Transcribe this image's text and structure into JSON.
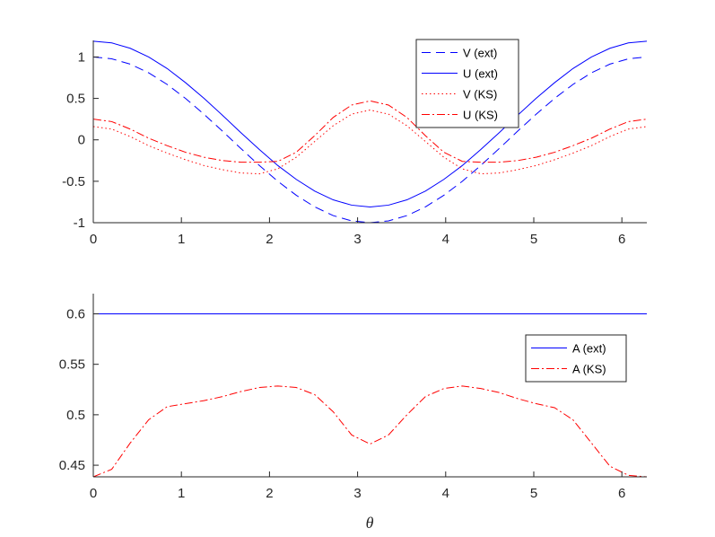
{
  "chart_data": [
    {
      "type": "line",
      "xlim": [
        0,
        6.2832
      ],
      "ylim": [
        -1,
        1.2
      ],
      "xticks": [
        0,
        1,
        2,
        3,
        4,
        5,
        6
      ],
      "xtick_labels": [
        "0",
        "1",
        "2",
        "3",
        "4",
        "5",
        "6"
      ],
      "yticks": [
        -1,
        -0.5,
        0,
        0.5,
        1
      ],
      "ytick_labels": [
        "-1",
        "-0.5",
        "0",
        "0.5",
        "1"
      ],
      "grid": false,
      "legend_position": "top-right",
      "x": [
        0,
        0.2094,
        0.4189,
        0.6283,
        0.8378,
        1.0472,
        1.2566,
        1.4661,
        1.6755,
        1.885,
        2.0944,
        2.3038,
        2.5133,
        2.7227,
        2.9322,
        3.1416,
        3.351,
        3.5605,
        3.7699,
        3.9794,
        4.1888,
        4.3982,
        4.6077,
        4.8171,
        5.0265,
        5.236,
        5.4454,
        5.6549,
        5.8643,
        6.0737,
        6.2832
      ],
      "series": [
        {
          "name": "V (ext)",
          "color": "#0000ff",
          "style": "dashed",
          "values": [
            1.0,
            0.978,
            0.914,
            0.809,
            0.669,
            0.5,
            0.309,
            0.105,
            -0.105,
            -0.309,
            -0.5,
            -0.669,
            -0.809,
            -0.914,
            -0.978,
            -1.0,
            -0.978,
            -0.914,
            -0.809,
            -0.669,
            -0.5,
            -0.309,
            -0.105,
            0.105,
            0.309,
            0.5,
            0.669,
            0.809,
            0.914,
            0.978,
            1.0
          ]
        },
        {
          "name": "U (ext)",
          "color": "#0000ff",
          "style": "solid",
          "values": [
            1.19,
            1.17,
            1.105,
            1.0,
            0.861,
            0.69,
            0.501,
            0.297,
            0.087,
            -0.117,
            -0.31,
            -0.477,
            -0.619,
            -0.724,
            -0.788,
            -0.81,
            -0.788,
            -0.724,
            -0.619,
            -0.477,
            -0.31,
            -0.117,
            0.087,
            0.297,
            0.501,
            0.69,
            0.861,
            1.0,
            1.105,
            1.17,
            1.19
          ]
        },
        {
          "name": "V (KS)",
          "color": "#ff0000",
          "style": "dotted",
          "values": [
            0.16,
            0.13,
            0.04,
            -0.07,
            -0.16,
            -0.24,
            -0.31,
            -0.36,
            -0.4,
            -0.41,
            -0.35,
            -0.21,
            -0.02,
            0.17,
            0.31,
            0.36,
            0.31,
            0.17,
            -0.02,
            -0.21,
            -0.35,
            -0.41,
            -0.4,
            -0.36,
            -0.31,
            -0.24,
            -0.16,
            -0.07,
            0.04,
            0.13,
            0.16
          ]
        },
        {
          "name": "U (KS)",
          "color": "#ff0000",
          "style": "dashdot",
          "values": [
            0.25,
            0.22,
            0.13,
            0.02,
            -0.07,
            -0.15,
            -0.21,
            -0.25,
            -0.27,
            -0.27,
            -0.26,
            -0.15,
            0.05,
            0.27,
            0.42,
            0.47,
            0.42,
            0.27,
            0.05,
            -0.15,
            -0.26,
            -0.27,
            -0.27,
            -0.25,
            -0.21,
            -0.15,
            -0.07,
            0.02,
            0.13,
            0.22,
            0.25
          ]
        }
      ]
    },
    {
      "type": "line",
      "xlabel": "θ",
      "xlim": [
        0,
        6.2832
      ],
      "ylim": [
        0.4385,
        0.62
      ],
      "xticks": [
        0,
        1,
        2,
        3,
        4,
        5,
        6
      ],
      "xtick_labels": [
        "0",
        "1",
        "2",
        "3",
        "4",
        "5",
        "6"
      ],
      "yticks": [
        0.45,
        0.5,
        0.55,
        0.6
      ],
      "ytick_labels": [
        "0.45",
        "0.5",
        "0.55",
        "0.6"
      ],
      "grid": false,
      "legend_position": "right",
      "x": [
        0,
        0.2094,
        0.4189,
        0.6283,
        0.8378,
        1.0472,
        1.2566,
        1.4661,
        1.6755,
        1.885,
        2.0944,
        2.3038,
        2.5133,
        2.7227,
        2.9322,
        3.1416,
        3.351,
        3.5605,
        3.7699,
        3.9794,
        4.1888,
        4.3982,
        4.6077,
        4.8171,
        5.0265,
        5.236,
        5.4454,
        5.6549,
        5.8643,
        6.0737,
        6.2832
      ],
      "series": [
        {
          "name": "A (ext)",
          "color": "#0000ff",
          "style": "solid",
          "values": [
            0.6,
            0.6,
            0.6,
            0.6,
            0.6,
            0.6,
            0.6,
            0.6,
            0.6,
            0.6,
            0.6,
            0.6,
            0.6,
            0.6,
            0.6,
            0.6,
            0.6,
            0.6,
            0.6,
            0.6,
            0.6,
            0.6,
            0.6,
            0.6,
            0.6,
            0.6,
            0.6,
            0.6,
            0.6,
            0.6,
            0.6
          ]
        },
        {
          "name": "A (KS)",
          "color": "#ff0000",
          "style": "dashdot",
          "values": [
            0.4385,
            0.446,
            0.472,
            0.495,
            0.508,
            0.511,
            0.514,
            0.518,
            0.523,
            0.527,
            0.5285,
            0.527,
            0.52,
            0.503,
            0.48,
            0.471,
            0.48,
            0.5,
            0.518,
            0.526,
            0.5285,
            0.526,
            0.522,
            0.516,
            0.511,
            0.507,
            0.495,
            0.472,
            0.449,
            0.44,
            0.4385
          ]
        }
      ]
    }
  ]
}
